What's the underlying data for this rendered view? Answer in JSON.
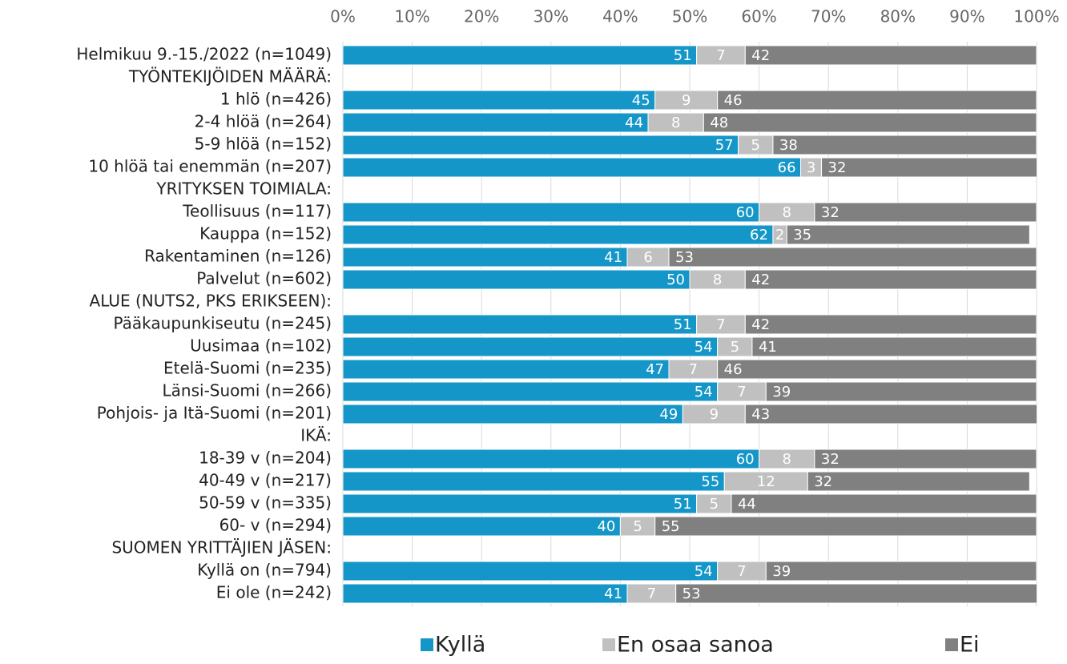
{
  "chart_data": {
    "type": "stacked_bar_horizontal",
    "categories": [
      "Helmikuu 9.-15./2022 (n=1049)",
      "TYÖNTEKIJÖIDEN MÄÄRÄ:",
      "1 hlö (n=426)",
      "2-4 hlöä (n=264)",
      "5-9 hlöä (n=152)",
      "10 hlöä tai enemmän (n=207)",
      "YRITYKSEN TOIMIALA:",
      "Teollisuus (n=117)",
      "Kauppa (n=152)",
      "Rakentaminen (n=126)",
      "Palvelut (n=602)",
      "ALUE (NUTS2, PKS ERIKSEEN):",
      "Pääkaupunkiseutu (n=245)",
      "Uusimaa (n=102)",
      "Etelä-Suomi (n=235)",
      "Länsi-Suomi (n=266)",
      "Pohjois- ja Itä-Suomi (n=201)",
      "IKÄ:",
      "18-39 v (n=204)",
      "40-49 v (n=217)",
      "50-59 v (n=335)",
      "60- v (n=294)",
      "SUOMEN YRITTÄJIEN JÄSEN:",
      "Kyllä on (n=794)",
      "Ei ole (n=242)"
    ],
    "series": [
      {
        "name": "Kyllä",
        "color": "#1496c8",
        "values": [
          51,
          null,
          45,
          44,
          57,
          66,
          null,
          60,
          62,
          41,
          50,
          null,
          51,
          54,
          47,
          54,
          49,
          null,
          60,
          55,
          51,
          40,
          null,
          54,
          41
        ]
      },
      {
        "name": "En osaa sanoa",
        "color": "#c0c0c0",
        "values": [
          7,
          null,
          9,
          8,
          5,
          3,
          null,
          8,
          2,
          6,
          8,
          null,
          7,
          5,
          7,
          7,
          9,
          null,
          8,
          12,
          5,
          5,
          null,
          7,
          7
        ]
      },
      {
        "name": "Ei",
        "color": "#808080",
        "values": [
          42,
          null,
          46,
          48,
          38,
          32,
          null,
          32,
          35,
          53,
          42,
          null,
          42,
          41,
          46,
          39,
          43,
          null,
          32,
          32,
          44,
          55,
          null,
          39,
          53
        ]
      }
    ],
    "xlim": [
      0,
      100
    ],
    "xticks": [
      {
        "value": 0,
        "label": "0%"
      },
      {
        "value": 10,
        "label": "10%"
      },
      {
        "value": 20,
        "label": "20%"
      },
      {
        "value": 30,
        "label": "30%"
      },
      {
        "value": 40,
        "label": "40%"
      },
      {
        "value": 50,
        "label": "50%"
      },
      {
        "value": 60,
        "label": "60%"
      },
      {
        "value": 70,
        "label": "70%"
      },
      {
        "value": 80,
        "label": "80%"
      },
      {
        "value": 90,
        "label": "90%"
      },
      {
        "value": 100,
        "label": "100%"
      }
    ],
    "grid": true,
    "legend": "bottom"
  }
}
